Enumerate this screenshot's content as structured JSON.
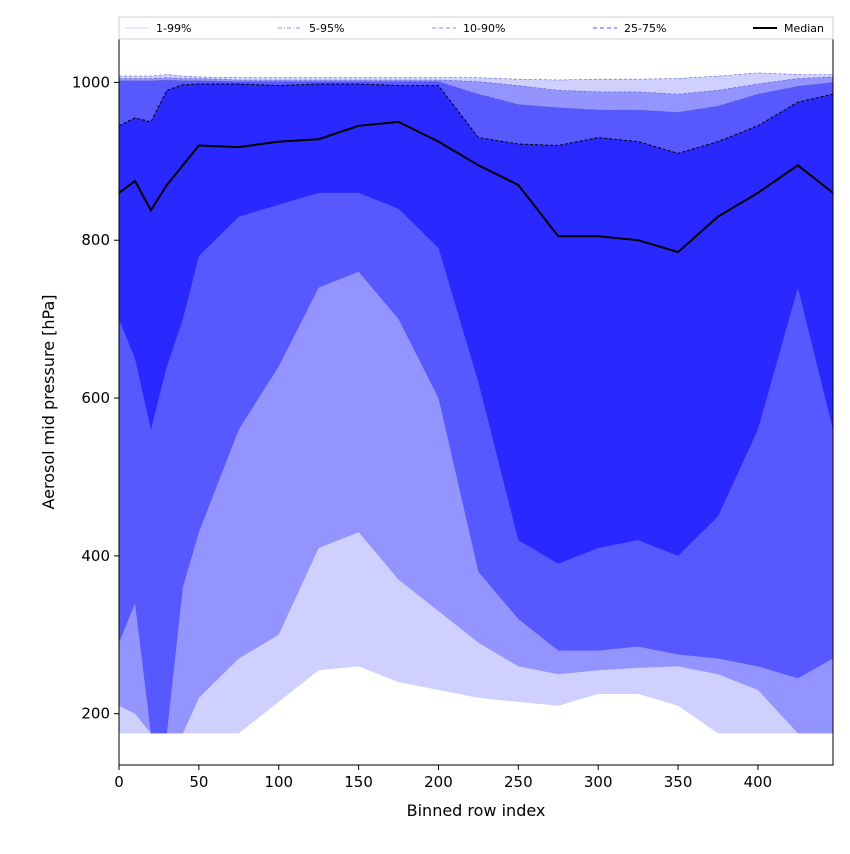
{
  "chart_data": {
    "type": "area",
    "xlabel": "Binned row index",
    "ylabel": "Aerosol mid pressure [hPa]",
    "xlim": [
      0,
      447
    ],
    "ylim": [
      135,
      1055
    ],
    "x_ticks": [
      0,
      50,
      100,
      150,
      200,
      250,
      300,
      350,
      400
    ],
    "x_tick_labels": [
      "0",
      "50",
      "100",
      "150",
      "200",
      "250",
      "300",
      "350",
      "400"
    ],
    "y_ticks": [
      200,
      400,
      600,
      800,
      1000
    ],
    "y_tick_labels": [
      "200",
      "400",
      "600",
      "800",
      "1000"
    ],
    "grid": false,
    "legend_position": "top",
    "x": [
      0,
      10,
      20,
      30,
      40,
      50,
      75,
      100,
      125,
      150,
      175,
      200,
      225,
      250,
      275,
      300,
      325,
      350,
      375,
      400,
      425,
      447
    ],
    "bands": [
      {
        "name": "1-99%",
        "color": "#d0d0ff",
        "lower": [
          175,
          175,
          175,
          175,
          175,
          175,
          175,
          215,
          255,
          260,
          240,
          230,
          220,
          215,
          210,
          225,
          225,
          210,
          175,
          175,
          175,
          175
        ],
        "upper": [
          1008,
          1008,
          1008,
          1010,
          1008,
          1007,
          1006,
          1006,
          1006,
          1006,
          1006,
          1006,
          1006,
          1004,
          1003,
          1004,
          1004,
          1005,
          1008,
          1012,
          1010,
          1010
        ]
      },
      {
        "name": "5-95%",
        "color": "#9494ff",
        "lower": [
          210,
          200,
          175,
          175,
          175,
          220,
          270,
          300,
          410,
          430,
          370,
          330,
          290,
          260,
          250,
          255,
          258,
          260,
          250,
          230,
          175,
          175
        ],
        "upper": [
          1005,
          1005,
          1005,
          1006,
          1005,
          1005,
          1003,
          1003,
          1003,
          1003,
          1003,
          1003,
          1001,
          996,
          990,
          988,
          988,
          985,
          990,
          998,
          1005,
          1007
        ]
      },
      {
        "name": "10-90%",
        "color": "#5858ff",
        "lower": [
          290,
          340,
          175,
          175,
          360,
          430,
          560,
          640,
          740,
          760,
          700,
          600,
          380,
          320,
          280,
          280,
          285,
          275,
          270,
          260,
          245,
          270
        ],
        "upper": [
          1002,
          1002,
          1002,
          1003,
          1002,
          1002,
          1001,
          1001,
          1001,
          1001,
          1001,
          1001,
          985,
          972,
          968,
          965,
          965,
          962,
          970,
          985,
          995,
          1000
        ]
      },
      {
        "name": "25-75%",
        "color": "#2828ff",
        "lower": [
          700,
          650,
          560,
          640,
          700,
          780,
          830,
          845,
          860,
          860,
          840,
          790,
          620,
          420,
          390,
          410,
          420,
          400,
          450,
          560,
          740,
          560
        ],
        "upper": [
          945,
          955,
          950,
          990,
          997,
          998,
          998,
          996,
          998,
          998,
          996,
          996,
          930,
          922,
          920,
          930,
          925,
          910,
          925,
          945,
          975,
          985
        ]
      }
    ],
    "series": [
      {
        "name": "Median",
        "color": "#000000",
        "values": [
          860,
          875,
          838,
          870,
          895,
          920,
          918,
          925,
          928,
          945,
          950,
          925,
          895,
          870,
          805,
          805,
          800,
          785,
          830,
          860,
          895,
          860
        ]
      }
    ],
    "legend": [
      {
        "label": "1-99%",
        "style": "solid",
        "color": "#d0d0ff"
      },
      {
        "label": "5-95%",
        "style": "dashdot",
        "color": "#9494ff"
      },
      {
        "label": "10-90%",
        "style": "dashed",
        "color": "#8c8cff"
      },
      {
        "label": "25-75%",
        "style": "dashed",
        "color": "#5050ff"
      },
      {
        "label": "Median",
        "style": "solid",
        "color": "#000000"
      }
    ]
  }
}
